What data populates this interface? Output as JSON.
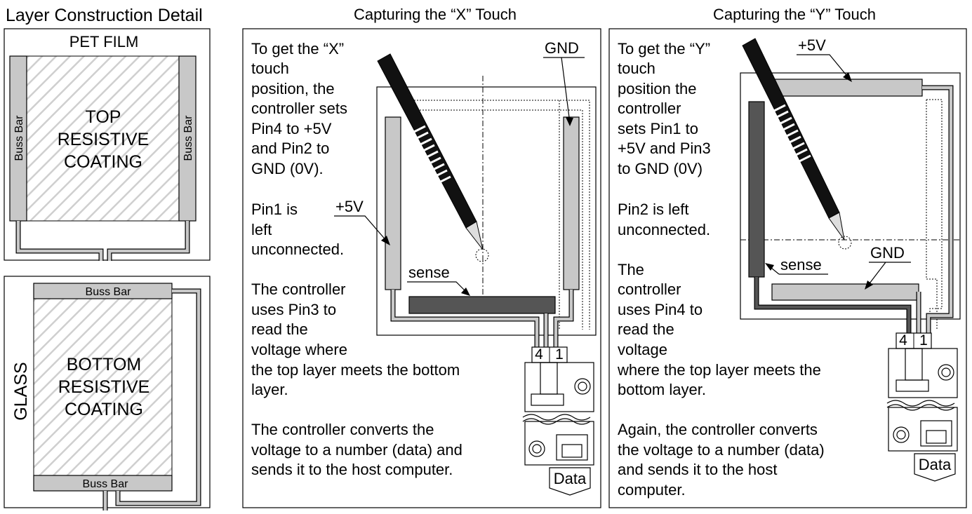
{
  "layer_panel": {
    "title": "Layer Construction Detail",
    "pet_label": "PET FILM",
    "top_coating": [
      "TOP",
      "RESISTIVE",
      "COATING"
    ],
    "buss_bar_left": "Buss Bar",
    "buss_bar_right": "Buss Bar",
    "glass_label": "GLASS",
    "bottom_coating": [
      "BOTTOM",
      "RESISTIVE",
      "COATING"
    ],
    "buss_bar_top": "Buss Bar",
    "buss_bar_bottom": "Buss Bar"
  },
  "x_panel": {
    "title": "Capturing the “X” Touch",
    "para1": [
      "To get the “X”",
      "touch",
      "position, the",
      "controller sets",
      "Pin4 to +5V",
      "and Pin2 to",
      "GND (0V)."
    ],
    "para2": [
      "Pin1 is",
      "left",
      "unconnected."
    ],
    "para3": [
      "The controller",
      "uses Pin3 to",
      "read the",
      "voltage where",
      "the top layer meets the bottom",
      "layer."
    ],
    "para4": [
      "The controller converts the",
      "voltage to a number (data) and",
      "sends it to the host computer."
    ],
    "label_gnd": "GND",
    "label_plus5": "+5V",
    "label_sense": "sense",
    "pin_left": "4",
    "pin_right": "1",
    "data_label": "Data"
  },
  "y_panel": {
    "title": "Capturing the “Y” Touch",
    "para1": [
      "To get the “Y”",
      "touch",
      "position the",
      "controller",
      "sets Pin1 to",
      "+5V and Pin3",
      "to GND (0V)"
    ],
    "para2": [
      "Pin2 is left",
      "unconnected."
    ],
    "para3": [
      "The",
      "controller",
      "uses Pin4 to",
      "read the",
      "voltage",
      "where the top layer meets the",
      "bottom layer."
    ],
    "para4": [
      "Again, the controller converts",
      "the voltage to a number (data)",
      "and sends it to the host",
      "computer."
    ],
    "label_plus5": "+5V",
    "label_gnd": "GND",
    "label_sense": "sense",
    "pin_left": "4",
    "pin_right": "1",
    "data_label": "Data"
  }
}
